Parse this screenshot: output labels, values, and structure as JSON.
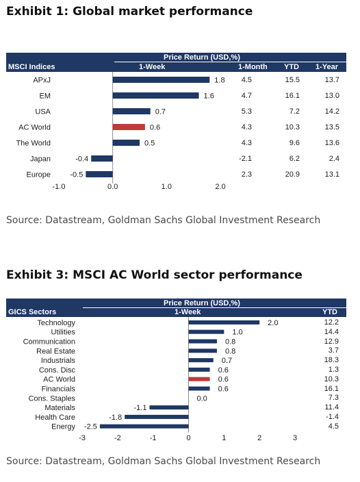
{
  "exhibit1": {
    "title": "Exhibit 1: Global market performance",
    "header_top": "Price Return (USD,%)",
    "col_label": "MSCI Indices",
    "col_1week": "1-Week",
    "col_1month": "1-Month",
    "col_ytd": "YTD",
    "col_1year": "1-Year",
    "source": "Source: Datastream, Goldman Sachs Global Investment Research"
  },
  "exhibit3": {
    "title": "Exhibit 3: MSCI AC World sector performance",
    "header_top": "Price Return (USD,%)",
    "col_label": "GICS Sectors",
    "col_1week": "1-Week",
    "col_ytd": "YTD",
    "source": "Source: Datastream, Goldman Sachs Global Investment Research"
  },
  "chart_data": [
    {
      "type": "bar",
      "orientation": "horizontal",
      "categories": [
        "APxJ",
        "EM",
        "USA",
        "AC World",
        "The World",
        "Japan",
        "Europe"
      ],
      "series": [
        {
          "name": "1-Week",
          "values": [
            1.8,
            1.6,
            0.7,
            0.6,
            0.5,
            -0.4,
            -0.5
          ]
        }
      ],
      "value_labels": [
        "1.8",
        "1.6",
        "0.7",
        "0.6",
        "0.5",
        "-0.4",
        "-0.5"
      ],
      "highlight_category": "AC World",
      "table_columns": {
        "1-Month": [
          "4.5",
          "4.7",
          "5.3",
          "4.3",
          "4.3",
          "-2.1",
          "2.3"
        ],
        "YTD": [
          "15.5",
          "16.1",
          "7.2",
          "10.3",
          "9.6",
          "6.2",
          "20.9"
        ],
        "1-Year": [
          "13.7",
          "13.0",
          "14.2",
          "13.5",
          "13.6",
          "2.4",
          "13.1"
        ]
      },
      "xlim": [
        -1.0,
        2.0
      ],
      "xticks": [
        "-1.0",
        "0.0",
        "1.0",
        "2.0"
      ],
      "xtick_values": [
        -1.0,
        0.0,
        1.0,
        2.0
      ],
      "colors": {
        "bar": "#1f3864",
        "highlight": "#c0393b",
        "header": "#1f3864"
      }
    },
    {
      "type": "bar",
      "orientation": "horizontal",
      "categories": [
        "Technology",
        "Utilities",
        "Communication",
        "Real Estate",
        "Industrials",
        "Cons. Disc",
        "AC World",
        "Financials",
        "Cons. Staples",
        "Materials",
        "Health Care",
        "Energy"
      ],
      "series": [
        {
          "name": "1-Week",
          "values": [
            2.0,
            1.0,
            0.8,
            0.8,
            0.7,
            0.6,
            0.6,
            0.6,
            0.0,
            -1.1,
            -1.8,
            -2.5
          ]
        }
      ],
      "value_labels": [
        "2.0",
        "1.0",
        "0.8",
        "0.8",
        "0.7",
        "0.6",
        "0.6",
        "0.6",
        "0.0",
        "-1.1",
        "-1.8",
        "-2.5"
      ],
      "highlight_category": "AC World",
      "table_columns": {
        "YTD": [
          "12.2",
          "14.4",
          "12.9",
          "3.7",
          "18.3",
          "1.3",
          "10.3",
          "16.1",
          "7.3",
          "11.4",
          "-1.4",
          "4.5"
        ]
      },
      "xlim": [
        -3,
        3
      ],
      "xticks": [
        "-3",
        "-2",
        "-1",
        "0",
        "1",
        "2",
        "3"
      ],
      "xtick_values": [
        -3,
        -2,
        -1,
        0,
        1,
        2,
        3
      ],
      "colors": {
        "bar": "#1f3864",
        "highlight": "#c0393b",
        "header": "#1f3864"
      }
    }
  ]
}
